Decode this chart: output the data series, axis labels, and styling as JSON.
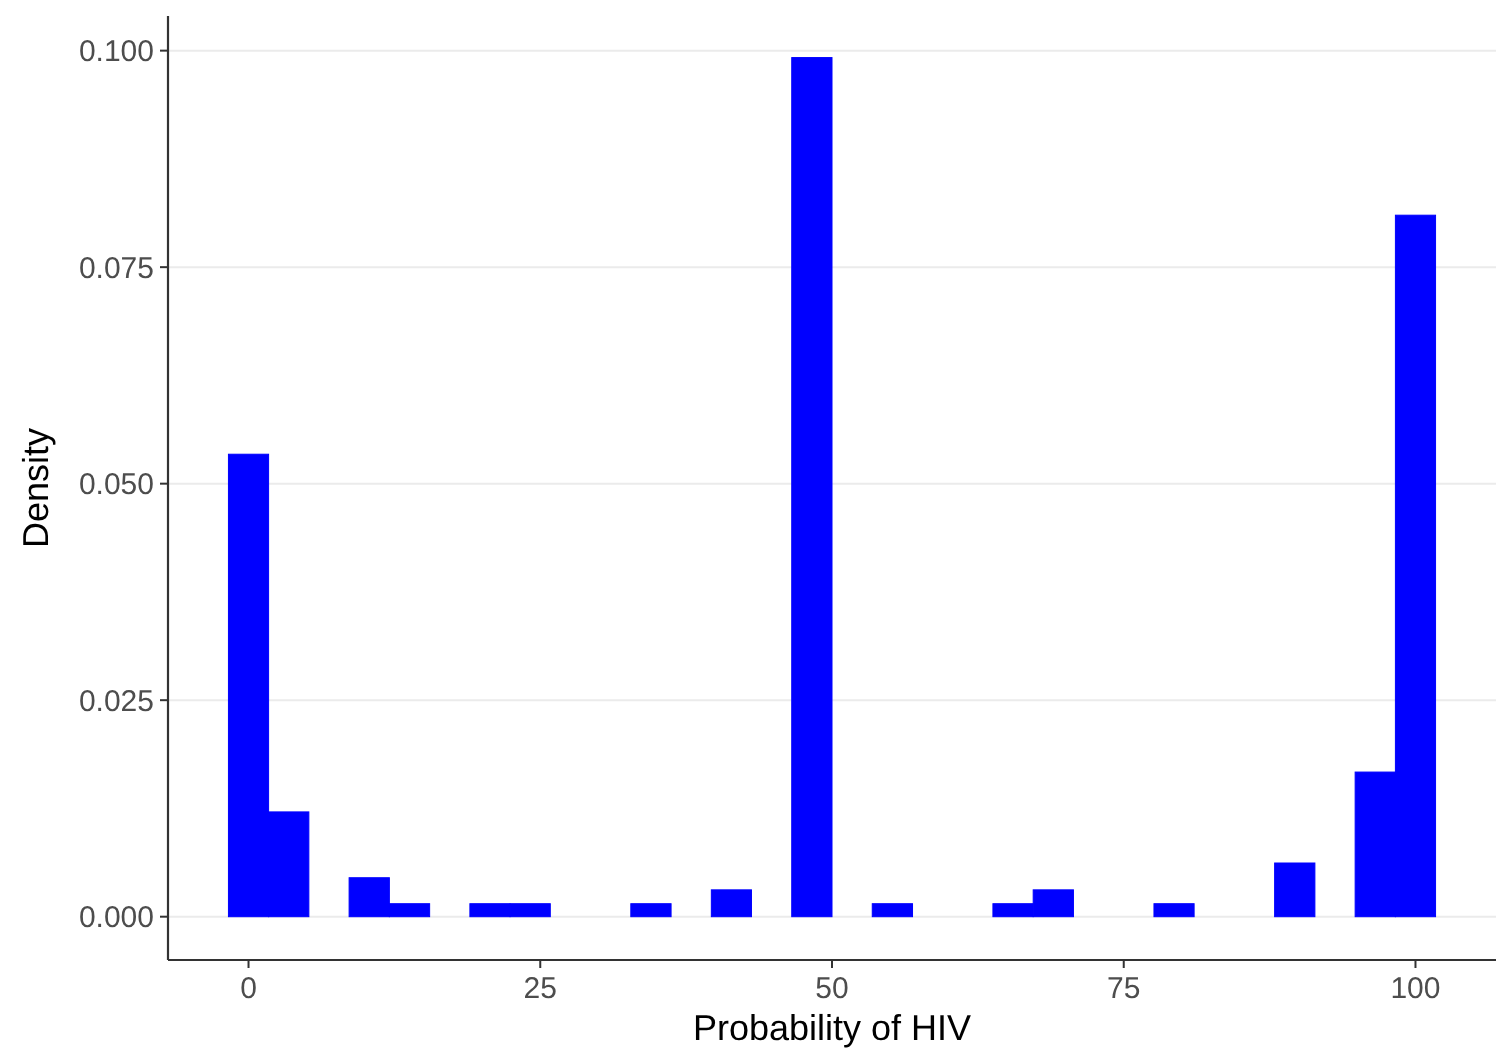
{
  "chart_data": {
    "type": "histogram",
    "xlabel": "Probability of HIV",
    "ylabel": "Density",
    "bins": [
      -1.72,
      1.72,
      5.17,
      8.62,
      12.07,
      15.52,
      18.97,
      22.41,
      25.86,
      29.31,
      32.76,
      36.21,
      39.66,
      43.1,
      46.55,
      50.0,
      53.45,
      56.9,
      60.34,
      63.79,
      67.24,
      70.69,
      74.14,
      77.59,
      81.03,
      84.48,
      87.93,
      91.38,
      94.83,
      98.28,
      101.72
    ],
    "values": [
      0.0534,
      0.0121,
      0,
      0.0045,
      0.0015,
      0,
      0.0015,
      0.0015,
      0,
      0,
      0.0015,
      0,
      0.0031,
      0,
      0.0992,
      0,
      0.0015,
      0,
      0,
      0.0015,
      0.0031,
      0,
      0,
      0.0015,
      0,
      0,
      0.0062,
      0,
      0.0167,
      0.081
    ],
    "color": "#0000ff",
    "xlim": [
      -6.9,
      106.9
    ],
    "xticks": [
      0,
      25,
      50,
      75,
      100
    ],
    "ylim": [
      -0.005,
      0.104
    ],
    "yticks": [
      {
        "value": 0,
        "label": "0.000"
      },
      {
        "value": 0.025,
        "label": "0.025"
      },
      {
        "value": 0.05,
        "label": "0.050"
      },
      {
        "value": 0.075,
        "label": "0.075"
      },
      {
        "value": 0.1,
        "label": "0.100"
      }
    ],
    "grid": "y"
  }
}
